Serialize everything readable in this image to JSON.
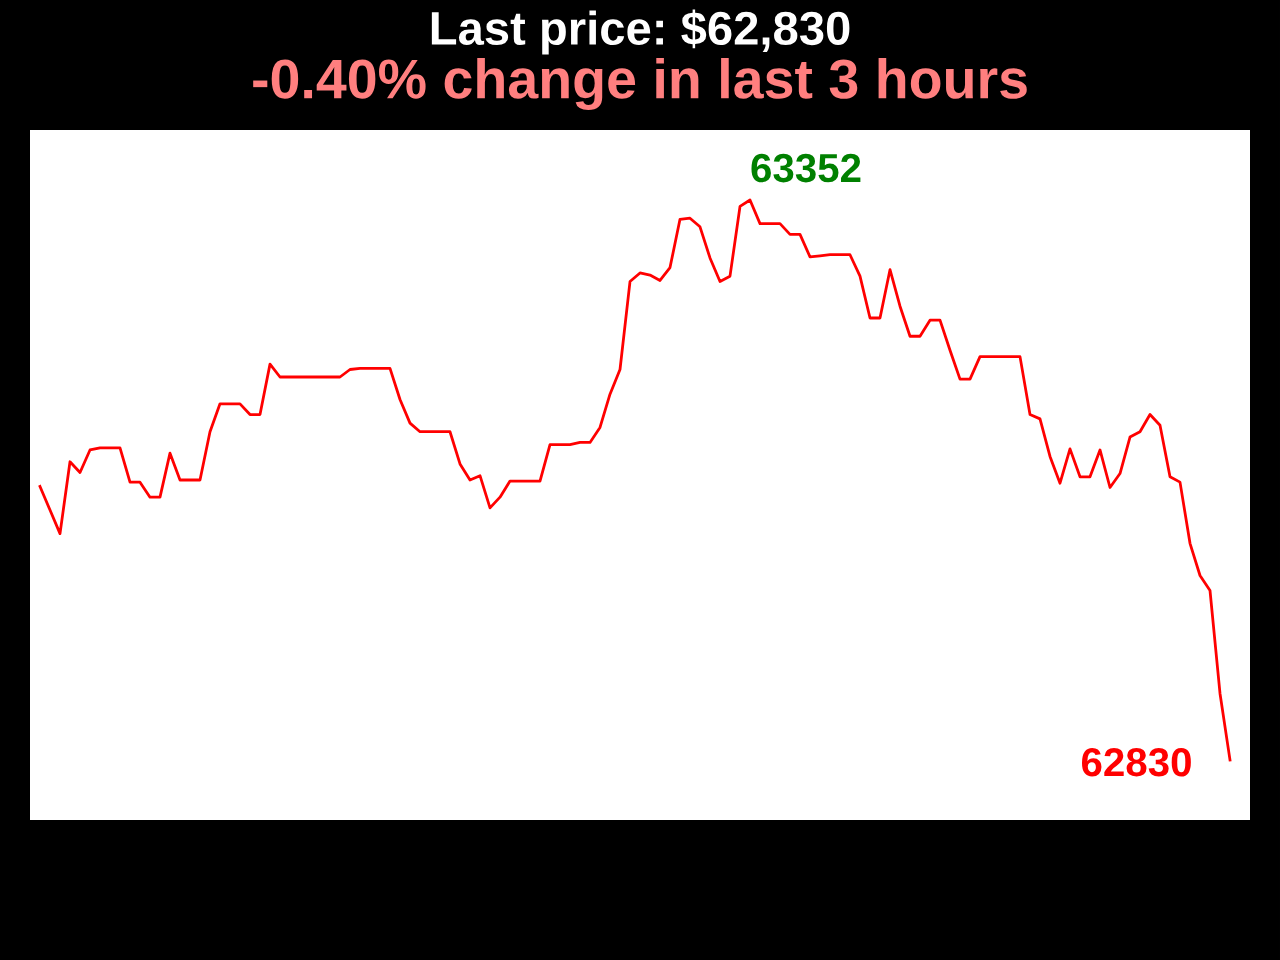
{
  "chart_data": {
    "type": "line",
    "title": "Last price: $62,830",
    "subtitle": "-0.40% change in last 3 hours",
    "categories": [
      null,
      null,
      null,
      null,
      null,
      null,
      null,
      null,
      null,
      null,
      null,
      null,
      null,
      null,
      null,
      null,
      null,
      null,
      null,
      null,
      null,
      null,
      null,
      null,
      null,
      null,
      null,
      null,
      null,
      null,
      null,
      null,
      null,
      null,
      null,
      null,
      null,
      null,
      null,
      null,
      null,
      null,
      null,
      null,
      null,
      null,
      null,
      null,
      null,
      null,
      null,
      null,
      null,
      null,
      null,
      null,
      null,
      null,
      null,
      null,
      null,
      null,
      null,
      null,
      null,
      null,
      null,
      null,
      null,
      null,
      null,
      null,
      null,
      null,
      null,
      null,
      null,
      null,
      null,
      null,
      null,
      null,
      null,
      null,
      null,
      null,
      null,
      null,
      null,
      null,
      null,
      null,
      null,
      null,
      null,
      null,
      null,
      null,
      null,
      null,
      null,
      null,
      null,
      null,
      null,
      null,
      null,
      null,
      null,
      null,
      null,
      null,
      null,
      null,
      null,
      null,
      null,
      null,
      null,
      null
    ],
    "series": [
      {
        "color": "#ff0000",
        "values": [
          63085,
          63063,
          63041,
          63108,
          63098,
          63119,
          63121,
          63121,
          63121,
          63089,
          63089,
          63075,
          63075,
          63116,
          63091,
          63091,
          63091,
          63136,
          63162,
          63162,
          63162,
          63152,
          63152,
          63199,
          63187,
          63187,
          63187,
          63187,
          63187,
          63187,
          63187,
          63194,
          63195,
          63195,
          63195,
          63195,
          63166,
          63144,
          63136,
          63136,
          63136,
          63136,
          63106,
          63091,
          63095,
          63065,
          63075,
          63090,
          63090,
          63090,
          63090,
          63124,
          63124,
          63124,
          63126,
          63126,
          63140,
          63171,
          63194,
          63276,
          63284,
          63282,
          63277,
          63289,
          63334,
          63335,
          63327,
          63298,
          63276,
          63281,
          63346,
          63352,
          63330,
          63330,
          63330,
          63320,
          63320,
          63299,
          63300,
          63301,
          63301,
          63301,
          63281,
          63242,
          63242,
          63287,
          63253,
          63225,
          63225,
          63240,
          63240,
          63212,
          63185,
          63185,
          63206,
          63206,
          63206,
          63206,
          63206,
          63152,
          63148,
          63113,
          63088,
          63120,
          63094,
          63094,
          63119,
          63084,
          63097,
          63131,
          63136,
          63152,
          63142,
          63094,
          63089,
          63032,
          63002,
          62988,
          62892,
          62830
        ],
        "value_labels": [
          null,
          null,
          null,
          null,
          null,
          null,
          null,
          null,
          null,
          null,
          null,
          null,
          null,
          null,
          null,
          null,
          null,
          null,
          null,
          null,
          null,
          null,
          null,
          null,
          null,
          null,
          null,
          null,
          null,
          null,
          null,
          null,
          null,
          null,
          null,
          null,
          null,
          null,
          null,
          null,
          null,
          null,
          null,
          null,
          null,
          null,
          null,
          null,
          null,
          null,
          null,
          null,
          null,
          null,
          null,
          null,
          null,
          null,
          null,
          null,
          null,
          null,
          null,
          null,
          null,
          null,
          null,
          null,
          null,
          null,
          null,
          "63352",
          null,
          null,
          null,
          null,
          null,
          null,
          null,
          null,
          null,
          null,
          null,
          null,
          null,
          null,
          null,
          null,
          null,
          null,
          null,
          null,
          null,
          null,
          null,
          null,
          null,
          null,
          null,
          null,
          null,
          null,
          null,
          null,
          null,
          null,
          null,
          null,
          null,
          null,
          null,
          null,
          null,
          null,
          null,
          null,
          null,
          null,
          null,
          "62830"
        ]
      }
    ],
    "marker": "none",
    "line_style": "solid"
  }
}
